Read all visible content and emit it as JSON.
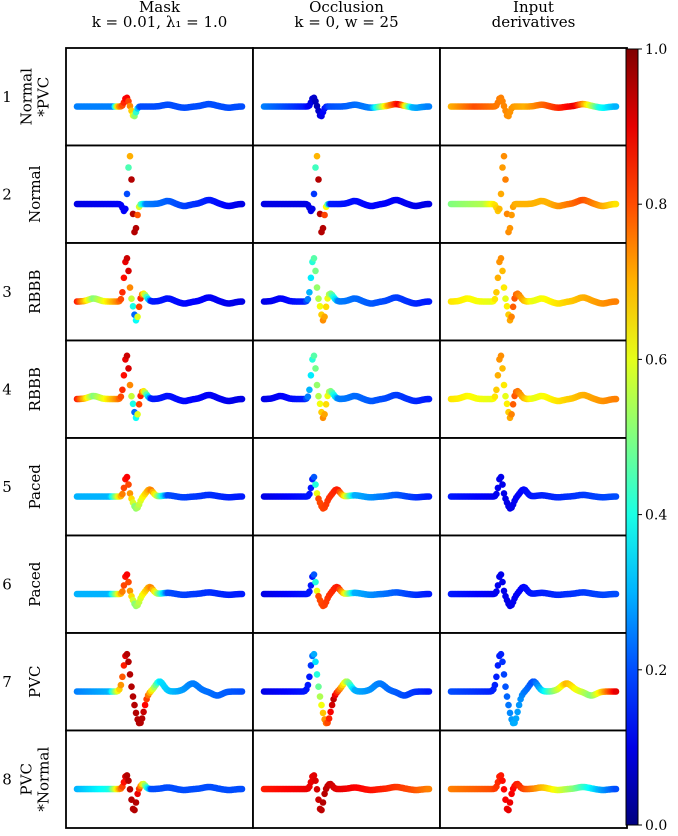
{
  "chart_data": {
    "type": "scatter",
    "description_columns": [
      {
        "key": "mask",
        "title_lines": [
          "Mask",
          "k = 0.01, λ₁ = 1.0"
        ]
      },
      {
        "key": "occlusion",
        "title_lines": [
          "Occlusion",
          "k = 0, w = 25"
        ]
      },
      {
        "key": "input_derivatives",
        "title_lines": [
          "Input",
          "derivatives"
        ]
      }
    ],
    "rows": [
      {
        "number": "1",
        "label_lines": [
          "Normal",
          "*PVC"
        ],
        "morphology": "normal_small"
      },
      {
        "number": "2",
        "label_lines": [
          "Normal"
        ],
        "morphology": "normal_tall"
      },
      {
        "number": "3",
        "label_lines": [
          "RBBB"
        ],
        "morphology": "rbbb"
      },
      {
        "number": "4",
        "label_lines": [
          "RBBB"
        ],
        "morphology": "rbbb"
      },
      {
        "number": "5",
        "label_lines": [
          "Paced"
        ],
        "morphology": "paced"
      },
      {
        "number": "6",
        "label_lines": [
          "Paced"
        ],
        "morphology": "paced"
      },
      {
        "number": "7",
        "label_lines": [
          "PVC"
        ],
        "morphology": "pvc"
      },
      {
        "number": "8",
        "label_lines": [
          "PVC",
          "*Normal"
        ],
        "morphology": "pvc_small"
      }
    ],
    "colorbar": {
      "colormap": "jet",
      "min": 0.0,
      "max": 1.0,
      "ticks": [
        {
          "value": 0.0,
          "label": "0.0"
        },
        {
          "value": 0.2,
          "label": "0.2"
        },
        {
          "value": 0.4,
          "label": "0.4"
        },
        {
          "value": 0.6,
          "label": "0.6"
        },
        {
          "value": 0.8,
          "label": "0.8"
        },
        {
          "value": 1.0,
          "label": "1.0"
        }
      ]
    },
    "relevance_profiles": {
      "r1": [
        [
          0,
          0.25
        ],
        [
          0.22,
          0.25
        ],
        [
          0.25,
          0.7
        ],
        [
          0.3,
          0.9
        ],
        [
          0.34,
          0.6
        ],
        [
          0.38,
          0.2
        ],
        [
          1,
          0.2
        ]
      ],
      "r1_occ": [
        [
          0,
          0.25
        ],
        [
          0.25,
          0.15
        ],
        [
          0.32,
          0.05
        ],
        [
          0.4,
          0.2
        ],
        [
          0.65,
          0.25
        ],
        [
          0.75,
          0.7
        ],
        [
          0.82,
          0.9
        ],
        [
          0.9,
          0.3
        ],
        [
          1,
          0.25
        ]
      ],
      "r1_inp": [
        [
          0,
          0.7
        ],
        [
          0.15,
          0.8
        ],
        [
          0.3,
          0.75
        ],
        [
          0.45,
          0.7
        ],
        [
          0.6,
          0.8
        ],
        [
          0.75,
          0.9
        ],
        [
          0.9,
          0.4
        ],
        [
          1,
          0.3
        ]
      ],
      "r2": [
        [
          0,
          0.1
        ],
        [
          0.3,
          0.12
        ],
        [
          0.33,
          0.95
        ],
        [
          0.36,
          0.95
        ],
        [
          0.38,
          0.5
        ],
        [
          0.42,
          0.25
        ],
        [
          1,
          0.1
        ]
      ],
      "r2_occ": [
        [
          0,
          0.1
        ],
        [
          0.3,
          0.1
        ],
        [
          0.33,
          0.95
        ],
        [
          0.36,
          0.95
        ],
        [
          0.4,
          0.15
        ],
        [
          1,
          0.1
        ]
      ],
      "r2_inp": [
        [
          0,
          0.5
        ],
        [
          0.2,
          0.55
        ],
        [
          0.33,
          0.75
        ],
        [
          0.4,
          0.7
        ],
        [
          0.6,
          0.7
        ],
        [
          0.8,
          0.8
        ],
        [
          1,
          0.65
        ]
      ],
      "r3": [
        [
          0,
          0.85
        ],
        [
          0.1,
          0.5
        ],
        [
          0.25,
          0.75
        ],
        [
          0.31,
          0.95
        ],
        [
          0.35,
          0.2
        ],
        [
          0.38,
          0.9
        ],
        [
          0.45,
          0.15
        ],
        [
          1,
          0.1
        ]
      ],
      "r3_occ": [
        [
          0,
          0.1
        ],
        [
          0.25,
          0.15
        ],
        [
          0.3,
          0.45
        ],
        [
          0.33,
          0.55
        ],
        [
          0.36,
          0.75
        ],
        [
          0.45,
          0.25
        ],
        [
          1,
          0.15
        ]
      ],
      "r3_inp": [
        [
          0,
          0.65
        ],
        [
          0.25,
          0.6
        ],
        [
          0.3,
          0.75
        ],
        [
          0.33,
          0.6
        ],
        [
          0.38,
          0.8
        ],
        [
          0.5,
          0.6
        ],
        [
          0.8,
          0.7
        ],
        [
          1,
          0.75
        ]
      ],
      "r5": [
        [
          0,
          0.3
        ],
        [
          0.2,
          0.3
        ],
        [
          0.3,
          0.9
        ],
        [
          0.35,
          0.5
        ],
        [
          0.45,
          0.75
        ],
        [
          0.55,
          0.2
        ],
        [
          1,
          0.15
        ]
      ],
      "r5_occ": [
        [
          0,
          0.1
        ],
        [
          0.3,
          0.15
        ],
        [
          0.33,
          0.8
        ],
        [
          0.45,
          0.85
        ],
        [
          0.55,
          0.3
        ],
        [
          1,
          0.15
        ]
      ],
      "r5_inp": [
        [
          0,
          0.15
        ],
        [
          0.35,
          0.1
        ],
        [
          0.5,
          0.15
        ],
        [
          1,
          0.2
        ]
      ],
      "r7": [
        [
          0,
          0.25
        ],
        [
          0.2,
          0.3
        ],
        [
          0.3,
          0.95
        ],
        [
          0.4,
          0.95
        ],
        [
          0.5,
          0.35
        ],
        [
          0.7,
          0.25
        ],
        [
          1,
          0.2
        ]
      ],
      "r7_occ": [
        [
          0,
          0.1
        ],
        [
          0.28,
          0.15
        ],
        [
          0.32,
          0.4
        ],
        [
          0.36,
          0.7
        ],
        [
          0.42,
          0.95
        ],
        [
          0.55,
          0.3
        ],
        [
          1,
          0.15
        ]
      ],
      "r7_inp": [
        [
          0,
          0.2
        ],
        [
          0.3,
          0.15
        ],
        [
          0.38,
          0.3
        ],
        [
          0.5,
          0.2
        ],
        [
          0.7,
          0.7
        ],
        [
          0.85,
          0.5
        ],
        [
          1,
          0.9
        ]
      ],
      "r8": [
        [
          0,
          0.3
        ],
        [
          0.2,
          0.4
        ],
        [
          0.3,
          0.95
        ],
        [
          0.36,
          0.95
        ],
        [
          0.45,
          0.2
        ],
        [
          1,
          0.2
        ]
      ],
      "r8_occ": [
        [
          0,
          0.85
        ],
        [
          0.3,
          0.9
        ],
        [
          0.36,
          0.95
        ],
        [
          0.45,
          0.9
        ],
        [
          0.7,
          0.85
        ],
        [
          0.9,
          0.8
        ],
        [
          1,
          0.75
        ]
      ],
      "r8_inp": [
        [
          0,
          0.75
        ],
        [
          0.25,
          0.8
        ],
        [
          0.35,
          0.9
        ],
        [
          0.5,
          0.75
        ],
        [
          0.75,
          0.5
        ],
        [
          0.9,
          0.3
        ],
        [
          1,
          0.2
        ]
      ]
    },
    "panel_profile_map": [
      [
        "r1",
        "r1_occ",
        "r1_inp"
      ],
      [
        "r2",
        "r2_occ",
        "r2_inp"
      ],
      [
        "r3",
        "r3_occ",
        "r3_inp"
      ],
      [
        "r3",
        "r3_occ",
        "r3_inp"
      ],
      [
        "r5",
        "r5_occ",
        "r5_inp"
      ],
      [
        "r5",
        "r5_occ",
        "r5_inp"
      ],
      [
        "r7",
        "r7_occ",
        "r7_inp"
      ],
      [
        "r8",
        "r8_occ",
        "r8_inp"
      ]
    ]
  }
}
